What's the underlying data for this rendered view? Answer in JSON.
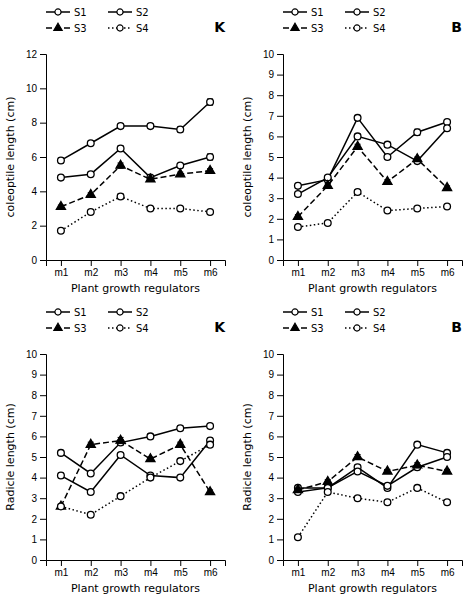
{
  "chart_data": [
    {
      "type": "line",
      "title": "K",
      "categories": [
        "m1",
        "m2",
        "m3",
        "m4",
        "m5",
        "m6"
      ],
      "xlabel": "Plant growth regulators",
      "ylabel": "coleoptile length (cm)",
      "ylim": [
        0,
        12
      ],
      "yticks": [
        0,
        2,
        4,
        6,
        8,
        10,
        12
      ],
      "grid": false,
      "legend": "top",
      "series": [
        {
          "name": "S1",
          "color": "black",
          "marker": "circle-open",
          "line_style": "solid",
          "values": [
            5.8,
            6.8,
            7.8,
            7.8,
            7.6,
            9.2
          ],
          "errors": [
            0.15,
            0.12,
            0.12,
            0.12,
            0.15,
            0.18
          ]
        },
        {
          "name": "S2",
          "color": "black",
          "marker": "circle-open",
          "line_style": "solid",
          "values": [
            4.8,
            5.0,
            6.5,
            4.8,
            5.5,
            6.0
          ],
          "errors": [
            0.12,
            0.12,
            0.15,
            0.12,
            0.12,
            0.18
          ]
        },
        {
          "name": "S3",
          "color": "black",
          "marker": "triangle",
          "line_style": "dashed",
          "values": [
            3.1,
            3.8,
            5.5,
            4.7,
            5.0,
            5.2
          ],
          "errors": [
            0.1,
            0.12,
            0.15,
            0.12,
            0.12,
            0.12
          ]
        },
        {
          "name": "S4",
          "color": "black",
          "marker": "circle-open",
          "line_style": "dotted",
          "values": [
            1.7,
            2.8,
            3.7,
            3.0,
            3.0,
            2.8
          ],
          "errors": [
            0.08,
            0.1,
            0.15,
            0.1,
            0.1,
            0.1
          ]
        }
      ]
    },
    {
      "type": "line",
      "title": "B",
      "categories": [
        "m1",
        "m2",
        "m3",
        "m4",
        "m5",
        "m6"
      ],
      "xlabel": "Plant growth regulators",
      "ylabel": "coleoptile length (cm)",
      "ylim": [
        0,
        10
      ],
      "yticks": [
        0,
        1,
        2,
        3,
        4,
        5,
        6,
        7,
        8,
        9,
        10
      ],
      "grid": false,
      "legend": "top",
      "series": [
        {
          "name": "S1",
          "color": "black",
          "marker": "circle-open",
          "line_style": "solid",
          "values": [
            3.6,
            3.9,
            6.9,
            5.0,
            6.2,
            6.7
          ],
          "errors": [
            0.12,
            0.1,
            0.12,
            0.12,
            0.15,
            0.12
          ]
        },
        {
          "name": "S2",
          "color": "black",
          "marker": "circle-open",
          "line_style": "solid",
          "values": [
            3.2,
            4.0,
            6.0,
            5.6,
            4.8,
            6.4
          ],
          "errors": [
            0.1,
            0.1,
            0.12,
            0.12,
            0.12,
            0.12
          ]
        },
        {
          "name": "S3",
          "color": "black",
          "marker": "triangle",
          "line_style": "dashed",
          "values": [
            2.1,
            3.6,
            5.5,
            3.8,
            4.9,
            3.5
          ],
          "errors": [
            0.1,
            0.12,
            0.12,
            0.1,
            0.1,
            0.1
          ]
        },
        {
          "name": "S4",
          "color": "black",
          "marker": "circle-open",
          "line_style": "dotted",
          "values": [
            1.6,
            1.8,
            3.3,
            2.4,
            2.5,
            2.6
          ],
          "errors": [
            0.08,
            0.08,
            0.12,
            0.08,
            0.08,
            0.08
          ]
        }
      ]
    },
    {
      "type": "line",
      "title": "K",
      "categories": [
        "m1",
        "m2",
        "m3",
        "m4",
        "m5",
        "m6"
      ],
      "xlabel": "Plant growth regulators",
      "ylabel": "Radicle length (cm)",
      "ylim": [
        0,
        10
      ],
      "yticks": [
        0,
        1,
        2,
        3,
        4,
        5,
        6,
        7,
        8,
        9,
        10
      ],
      "grid": false,
      "legend": "top",
      "series": [
        {
          "name": "S1",
          "color": "black",
          "marker": "circle-open",
          "line_style": "solid",
          "values": [
            5.2,
            4.2,
            5.7,
            6.0,
            6.4,
            6.5
          ],
          "errors": [
            0.12,
            0.1,
            0.12,
            0.12,
            0.12,
            0.12
          ]
        },
        {
          "name": "S2",
          "color": "black",
          "marker": "circle-open",
          "line_style": "solid",
          "values": [
            4.1,
            3.3,
            5.1,
            4.1,
            4.0,
            5.8
          ],
          "errors": [
            0.12,
            0.1,
            0.1,
            0.1,
            0.1,
            0.12
          ]
        },
        {
          "name": "S3",
          "color": "black",
          "marker": "triangle",
          "line_style": "dashed",
          "values": [
            2.6,
            5.6,
            5.8,
            4.9,
            5.6,
            3.3
          ],
          "errors": [
            0.1,
            0.12,
            0.15,
            0.1,
            0.12,
            0.1
          ]
        },
        {
          "name": "S4",
          "color": "black",
          "marker": "circle-open",
          "line_style": "dotted",
          "values": [
            2.6,
            2.2,
            3.1,
            4.0,
            4.8,
            5.6
          ],
          "errors": [
            0.1,
            0.1,
            0.1,
            0.12,
            0.12,
            0.12
          ]
        }
      ]
    },
    {
      "type": "line",
      "title": "B",
      "categories": [
        "m1",
        "m2",
        "m3",
        "m4",
        "m5",
        "m6"
      ],
      "xlabel": "Plant growth regulators",
      "ylabel": "Radicle length (cm)",
      "ylim": [
        0,
        10
      ],
      "yticks": [
        0,
        1,
        2,
        3,
        4,
        5,
        6,
        7,
        8,
        9,
        10
      ],
      "grid": false,
      "legend": "top",
      "series": [
        {
          "name": "S1",
          "color": "black",
          "marker": "circle-open",
          "line_style": "solid",
          "values": [
            3.5,
            3.5,
            4.5,
            3.5,
            5.6,
            5.2
          ],
          "errors": [
            0.12,
            0.1,
            0.12,
            0.12,
            0.12,
            0.12
          ]
        },
        {
          "name": "S2",
          "color": "black",
          "marker": "circle-open",
          "line_style": "solid",
          "values": [
            3.3,
            3.5,
            4.3,
            3.6,
            4.5,
            5.0
          ],
          "errors": [
            0.1,
            0.1,
            0.1,
            0.1,
            0.12,
            0.12
          ]
        },
        {
          "name": "S3",
          "color": "black",
          "marker": "triangle",
          "line_style": "dashed",
          "values": [
            3.4,
            3.8,
            5.0,
            4.3,
            4.6,
            4.3
          ],
          "errors": [
            0.1,
            0.1,
            0.12,
            0.1,
            0.12,
            0.1
          ]
        },
        {
          "name": "S4",
          "color": "black",
          "marker": "circle-open",
          "line_style": "dotted",
          "values": [
            1.1,
            3.3,
            3.0,
            2.8,
            3.5,
            2.8
          ],
          "errors": [
            0.08,
            0.1,
            0.1,
            0.1,
            0.1,
            0.1
          ]
        }
      ]
    }
  ]
}
